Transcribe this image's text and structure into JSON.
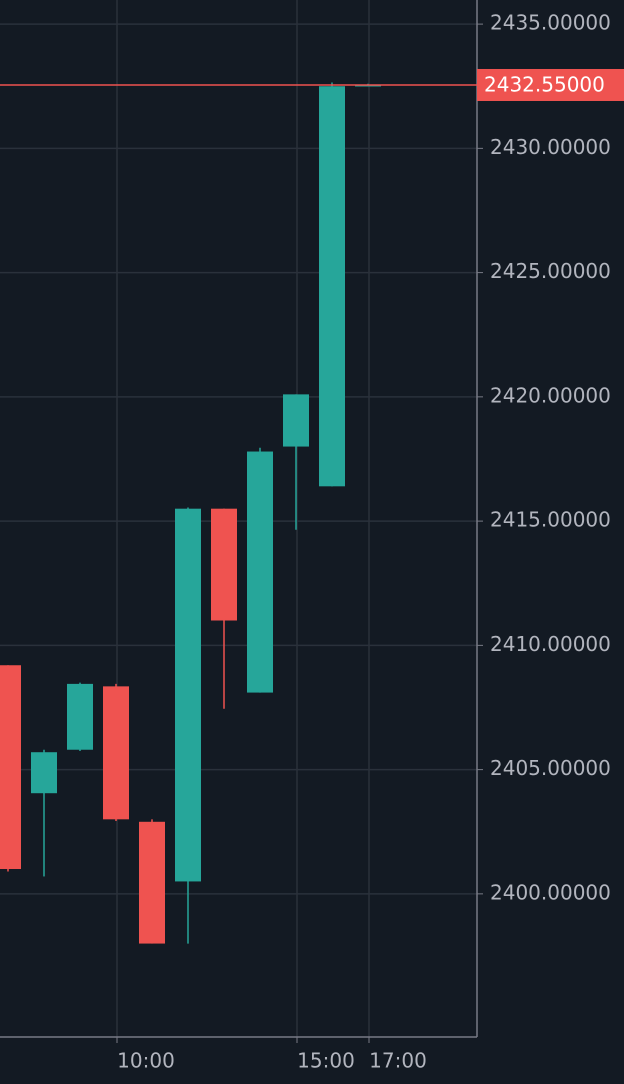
{
  "chart_data": {
    "type": "candlestick",
    "categories": [
      null,
      null,
      null,
      "10:00",
      null,
      null,
      null,
      null,
      "15:00",
      null,
      "17:00"
    ],
    "series": [
      {
        "up_color": "#26a69a",
        "down_color": "#ef5350",
        "open": [
          2409.2,
          2404.05,
          2405.8,
          2408.35,
          2402.9,
          2400.5,
          2415.5,
          2408.1,
          2418.0,
          2416.4,
          2432.5
        ],
        "high": [
          2409.2,
          2405.8,
          2408.5,
          2408.45,
          2403.0,
          2415.55,
          2415.5,
          2417.95,
          2420.1,
          2432.65,
          2432.6
        ],
        "low": [
          2400.9,
          2400.7,
          2405.75,
          2402.93,
          2398.0,
          2398.0,
          2407.45,
          2408.1,
          2414.65,
          2416.4,
          2432.5
        ],
        "close": [
          2401.0,
          2405.7,
          2408.45,
          2403.0,
          2398.0,
          2415.5,
          2411.0,
          2417.8,
          2420.1,
          2432.5,
          2432.55
        ]
      }
    ],
    "ylim": [
      2394.24,
      2435.97
    ],
    "yticks": [
      {
        "value": 2400,
        "label": "2400.00000"
      },
      {
        "value": 2405,
        "label": "2405.00000"
      },
      {
        "value": 2410,
        "label": "2410.00000"
      },
      {
        "value": 2415,
        "label": "2415.00000"
      },
      {
        "value": 2420,
        "label": "2420.00000"
      },
      {
        "value": 2425,
        "label": "2425.00000"
      },
      {
        "value": 2430,
        "label": "2430.00000"
      },
      {
        "value": 2435,
        "label": "2435.00000"
      }
    ],
    "last_price": {
      "value": 2432.55,
      "label": "2432.55000",
      "color": "#ef5350"
    },
    "grid": true
  }
}
